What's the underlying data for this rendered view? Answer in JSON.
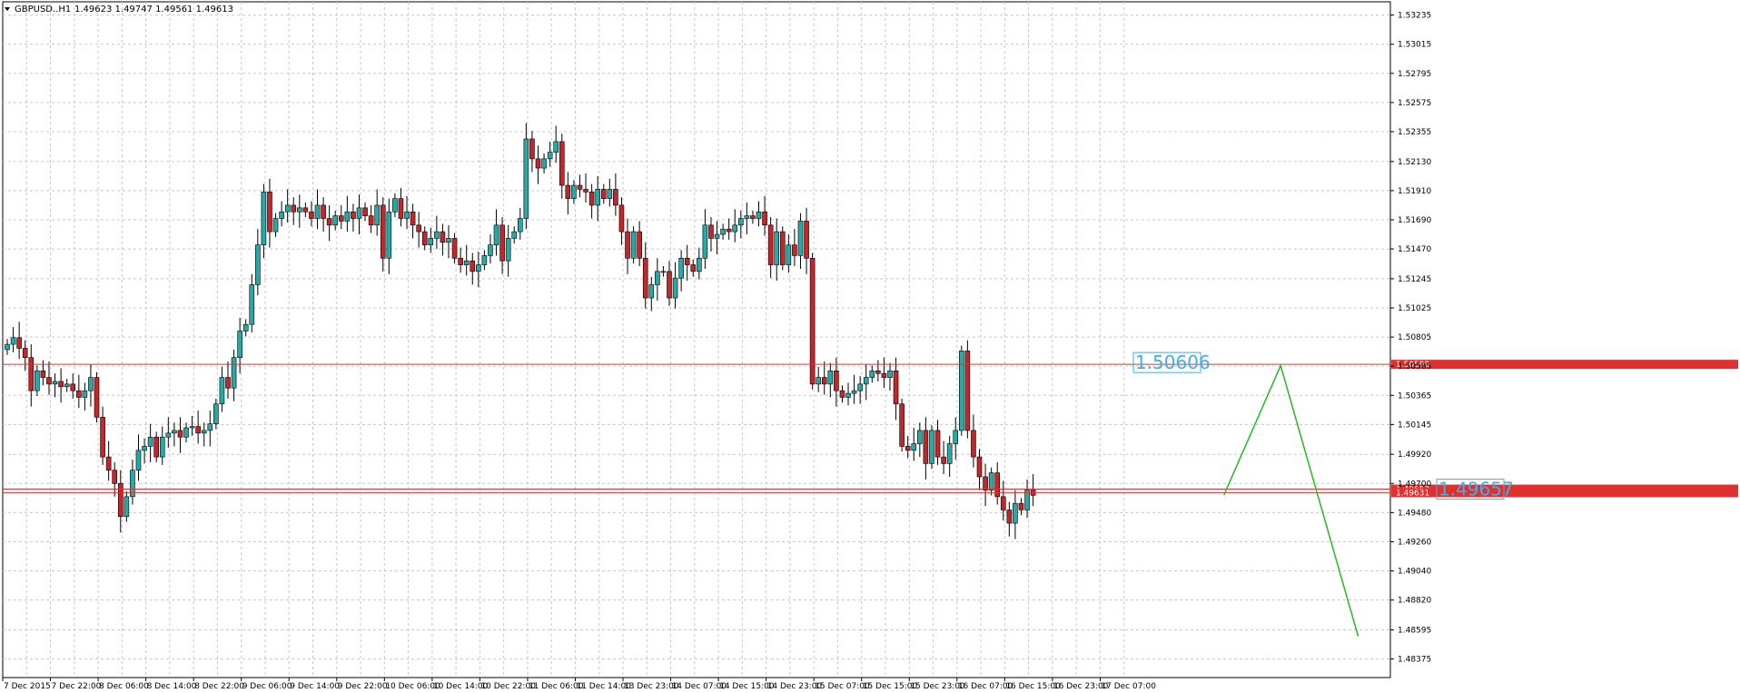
{
  "header": {
    "symbol": "GBPUSD..H1",
    "ohlc": "1.49623 1.49747 1.49561 1.49613"
  },
  "chart_data": {
    "type": "candlestick",
    "ylim": [
      1.48235,
      1.53335
    ],
    "y_ticks": [
      "1.53235",
      "1.53015",
      "1.52795",
      "1.52575",
      "1.52355",
      "1.52130",
      "1.51910",
      "1.51690",
      "1.51470",
      "1.51245",
      "1.51025",
      "1.50805",
      "1.50585",
      "1.50365",
      "1.50145",
      "1.49920",
      "1.49700",
      "1.49480",
      "1.49260",
      "1.49040",
      "1.48820",
      "1.48595",
      "1.48375"
    ],
    "x_ticks": [
      "7 Dec 2015",
      "7 Dec 22:00",
      "8 Dec 06:00",
      "8 Dec 14:00",
      "8 Dec 22:00",
      "9 Dec 06:00",
      "9 Dec 14:00",
      "9 Dec 22:00",
      "10 Dec 06:00",
      "10 Dec 14:00",
      "10 Dec 22:00",
      "11 Dec 06:00",
      "11 Dec 14:00",
      "13 Dec 23:00",
      "14 Dec 07:00",
      "14 Dec 15:00",
      "14 Dec 23:00",
      "15 Dec 07:00",
      "15 Dec 15:00",
      "15 Dec 23:00",
      "16 Dec 07:00",
      "16 Dec 15:00",
      "16 Dec 23:00",
      "17 Dec 07:00"
    ],
    "bars_per_tick": 8,
    "closes": [
      1.5075,
      1.508,
      1.5072,
      1.5065,
      1.504,
      1.5055,
      1.505,
      1.5045,
      1.5047,
      1.5043,
      1.5045,
      1.504,
      1.5035,
      1.504,
      1.505,
      1.502,
      1.499,
      1.498,
      1.497,
      1.4945,
      1.496,
      1.498,
      1.4995,
      1.4998,
      1.5005,
      1.499,
      1.5005,
      1.5008,
      1.501,
      1.5005,
      1.5012,
      1.5013,
      1.5008,
      1.501,
      1.5015,
      1.503,
      1.505,
      1.5042,
      1.5065,
      1.5085,
      1.509,
      1.512,
      1.515,
      1.519,
      1.516,
      1.517,
      1.5175,
      1.518,
      1.5175,
      1.5178,
      1.5175,
      1.517,
      1.518,
      1.517,
      1.5165,
      1.5172,
      1.5168,
      1.5175,
      1.517,
      1.5178,
      1.5172,
      1.5165,
      1.518,
      1.514,
      1.5175,
      1.5185,
      1.517,
      1.5175,
      1.5165,
      1.516,
      1.515,
      1.5155,
      1.516,
      1.5152,
      1.5155,
      1.514,
      1.5135,
      1.5138,
      1.513,
      1.5135,
      1.5142,
      1.515,
      1.5165,
      1.5138,
      1.5155,
      1.516,
      1.517,
      1.523,
      1.5215,
      1.5208,
      1.5215,
      1.522,
      1.5228,
      1.5195,
      1.5185,
      1.5195,
      1.5192,
      1.519,
      1.518,
      1.5192,
      1.5185,
      1.5192,
      1.518,
      1.516,
      1.514,
      1.516,
      1.514,
      1.511,
      1.512,
      1.513,
      1.513,
      1.511,
      1.5125,
      1.514,
      1.5135,
      1.513,
      1.514,
      1.5165,
      1.5155,
      1.5158,
      1.5162,
      1.516,
      1.5165,
      1.517,
      1.5172,
      1.517,
      1.5175,
      1.5165,
      1.5135,
      1.516,
      1.5135,
      1.515,
      1.5142,
      1.5168,
      1.514,
      1.5045,
      1.505,
      1.5045,
      1.5055,
      1.504,
      1.5035,
      1.5038,
      1.504,
      1.5045,
      1.505,
      1.5055,
      1.5053,
      1.505,
      1.5055,
      1.503,
      1.4998,
      1.4995,
      1.5,
      1.501,
      1.4985,
      1.501,
      1.499,
      1.4985,
      1.5,
      1.501,
      1.507,
      1.501,
      1.499,
      1.4975,
      1.4965,
      1.4978,
      1.496,
      1.495,
      1.494,
      1.4955,
      1.495,
      1.4965,
      1.4961
    ],
    "series": [
      {
        "values": [
          [
            1.50606,
            "1.50606"
          ],
          [
            1.49657,
            "1.49657"
          ]
        ]
      }
    ],
    "hlines": [
      {
        "value": 1.50599,
        "label": "1.50599"
      },
      {
        "value": 1.49657,
        "label": "1.49657"
      },
      {
        "value": 1.49631,
        "label": "1.49631"
      }
    ],
    "projection": [
      [
        204,
        1.49613
      ],
      [
        213.5,
        1.50589
      ],
      [
        226.5,
        1.48546
      ]
    ],
    "colors": {
      "bull": "#2e8b8b",
      "bear": "#c0282c",
      "bull_body": "#29a8a8",
      "hline": "#e03030",
      "projection": "#22bb22",
      "label": "#3eb0e8",
      "grid": "#c8c8c8"
    }
  }
}
